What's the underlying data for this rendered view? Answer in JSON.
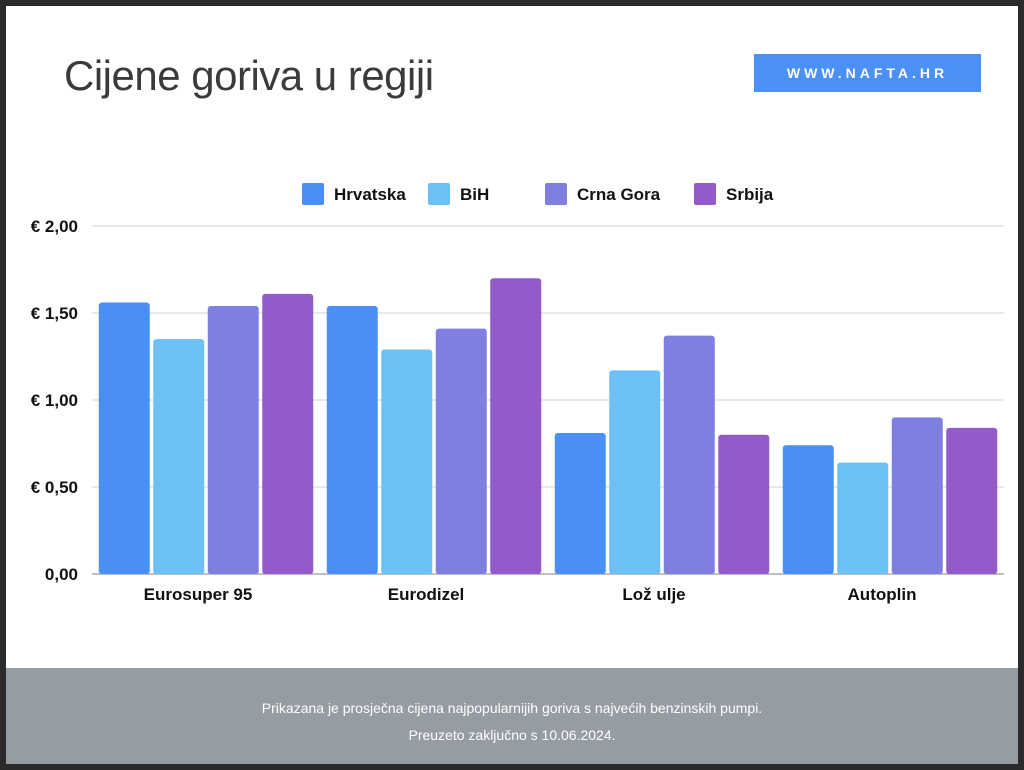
{
  "header": {
    "title": "Cijene goriva u regiji",
    "site_label": "WWW.NAFTA.HR"
  },
  "footer": {
    "line1": "Prikazana je prosječna cijena najpopularnijih goriva  s najvećih benzinskih pumpi.",
    "line2": "Preuzeto zaključno s 10.06.2024."
  },
  "colors": {
    "background": "#ffffff",
    "footer_bg": "#969ca3",
    "badge_bg": "#4a90f5"
  },
  "chart_data": {
    "type": "bar",
    "title": "",
    "xlabel": "",
    "ylabel": "",
    "categories": [
      "Eurosuper 95",
      "Eurodizel",
      "Lož ulje",
      "Autoplin"
    ],
    "series": [
      {
        "name": "Hrvatska",
        "color": "#4a8ff3",
        "values": [
          1.56,
          1.54,
          0.81,
          0.74
        ]
      },
      {
        "name": "BiH",
        "color": "#6cc0f6",
        "values": [
          1.35,
          1.29,
          1.17,
          0.64
        ]
      },
      {
        "name": "Crna Gora",
        "color": "#7f7fe0",
        "values": [
          1.54,
          1.41,
          1.37,
          0.9
        ]
      },
      {
        "name": "Srbija",
        "color": "#935ac9",
        "values": [
          1.61,
          1.7,
          0.8,
          0.84
        ]
      }
    ],
    "ylim": [
      0,
      2
    ],
    "yticks": [
      0,
      0.5,
      1.0,
      1.5,
      2.0
    ],
    "ytick_labels": [
      "0,00",
      "€ 0,50",
      "€ 1,00",
      "€ 1,50",
      "€ 2,00"
    ],
    "grid": true,
    "legend_position": "top-center"
  }
}
